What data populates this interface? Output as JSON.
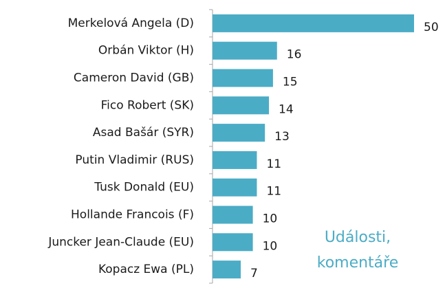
{
  "chart_data": {
    "type": "bar",
    "orientation": "horizontal",
    "categories": [
      "Merkelová Angela (D)",
      "Orbán Viktor (H)",
      "Cameron David (GB)",
      "Fico Robert (SK)",
      "Asad Bašár (SYR)",
      "Putin Vladimir (RUS)",
      "Tusk Donald (EU)",
      "Hollande Francois (F)",
      "Juncker Jean-Claude (EU)",
      "Kopacz Ewa (PL)"
    ],
    "values": [
      50,
      16,
      15,
      14,
      13,
      11,
      11,
      10,
      10,
      7
    ],
    "color": "#4bacc6",
    "annotation": [
      "Události,",
      "komentáře"
    ]
  }
}
